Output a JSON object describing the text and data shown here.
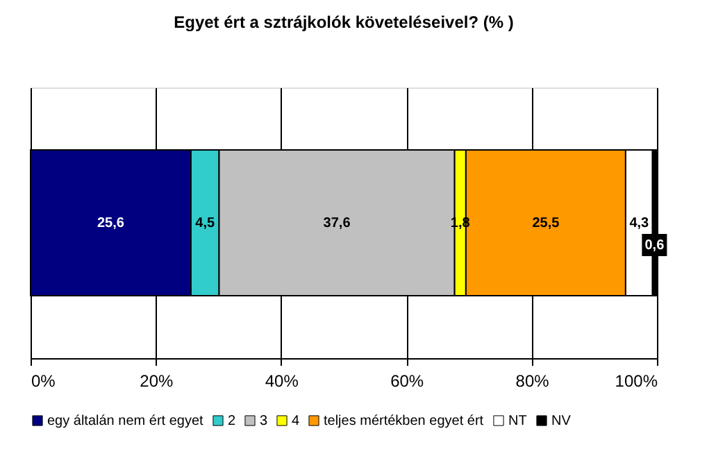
{
  "chart_data": {
    "type": "bar",
    "orientation": "horizontal",
    "stacked": true,
    "title": "Egyet ért a sztrájkolók követeléseivel? (% )",
    "categories": [
      null
    ],
    "series": [
      {
        "name": "egy általán nem ért egyet",
        "color": "#000080",
        "values": [
          25.6
        ],
        "value_labels": [
          "25,6"
        ]
      },
      {
        "name": "2",
        "color": "#33cccc",
        "values": [
          4.5
        ],
        "value_labels": [
          "4,5"
        ]
      },
      {
        "name": "3",
        "color": "#c0c0c0",
        "values": [
          37.6
        ],
        "value_labels": [
          "37,6"
        ]
      },
      {
        "name": "4",
        "color": "#ffff00",
        "values": [
          1.8
        ],
        "value_labels": [
          "1,8"
        ]
      },
      {
        "name": "teljes mértékben egyet ért",
        "color": "#ff9900",
        "values": [
          25.5
        ],
        "value_labels": [
          "25,5"
        ]
      },
      {
        "name": "NT",
        "color": "#ffffff",
        "values": [
          4.3
        ],
        "value_labels": [
          "4,3"
        ]
      },
      {
        "name": "NV",
        "color": "#000000",
        "values": [
          0.6
        ],
        "value_labels": [
          "0,6"
        ]
      }
    ],
    "xlim": [
      0,
      100
    ],
    "xticks": [
      {
        "value": 0,
        "label": "0%"
      },
      {
        "value": 20,
        "label": "20%"
      },
      {
        "value": 40,
        "label": "40%"
      },
      {
        "value": 60,
        "label": "60%"
      },
      {
        "value": 80,
        "label": "80%"
      },
      {
        "value": 100,
        "label": "100%"
      }
    ],
    "grid": "x",
    "legend": "bottom"
  }
}
